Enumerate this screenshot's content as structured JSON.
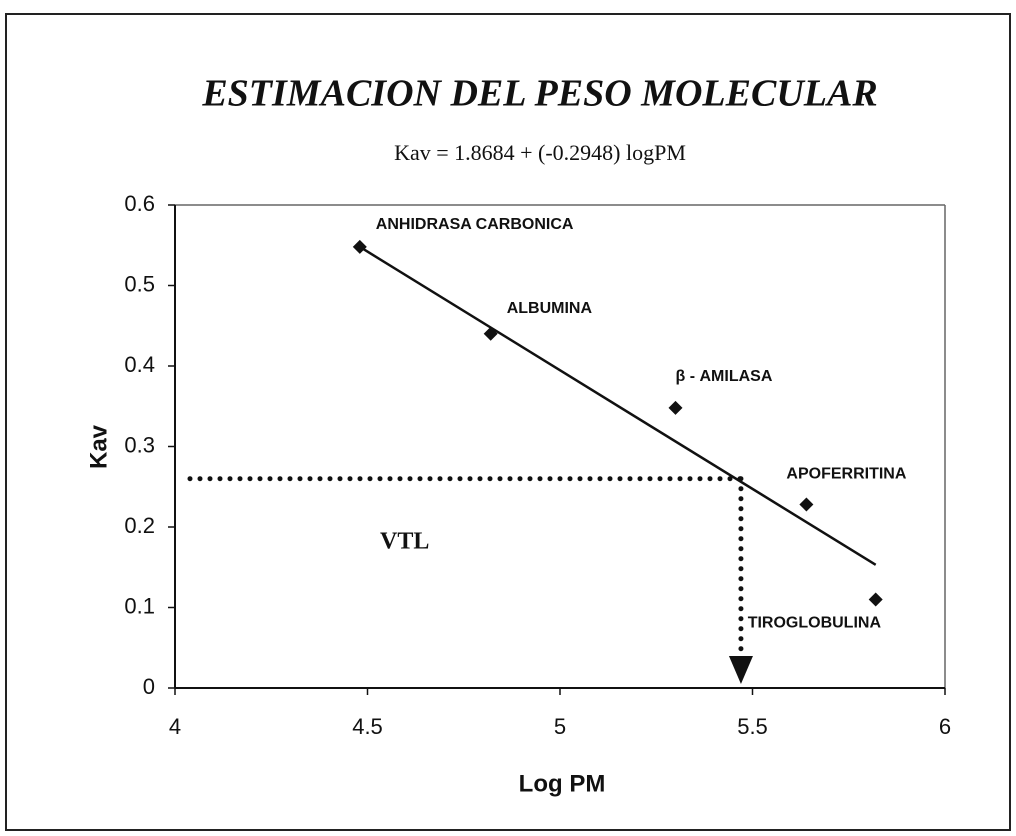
{
  "chart_data": {
    "type": "scatter",
    "title": "ESTIMACION DEL PESO MOLECULAR",
    "subtitle": "Kav = 1.8684 + (-0.2948) logPM",
    "x_label": "Log PM",
    "y_label": "Kav",
    "x": [
      4.48,
      4.82,
      5.3,
      5.64,
      5.82
    ],
    "values": [
      0.548,
      0.44,
      0.348,
      0.228,
      0.11
    ],
    "labels": [
      "ANHIDRASA CARBONICA",
      "ALBUMINA",
      "β - AMILASA",
      "APOFERRITINA",
      "TIROGLOBULINA"
    ],
    "color": "#111111",
    "trend_x": [
      4.48,
      5.82
    ],
    "trend_values": [
      0.548,
      0.153
    ],
    "reference_x": 5.47,
    "reference_y": 0.26,
    "annotation": "VTL",
    "xlim": [
      4,
      6
    ],
    "xticks": [
      4,
      4.5,
      5,
      5.5,
      6
    ],
    "ylim": [
      0,
      0.6
    ],
    "yticks": [
      0,
      0.1,
      0.2,
      0.3,
      0.4,
      0.5,
      0.6
    ]
  }
}
